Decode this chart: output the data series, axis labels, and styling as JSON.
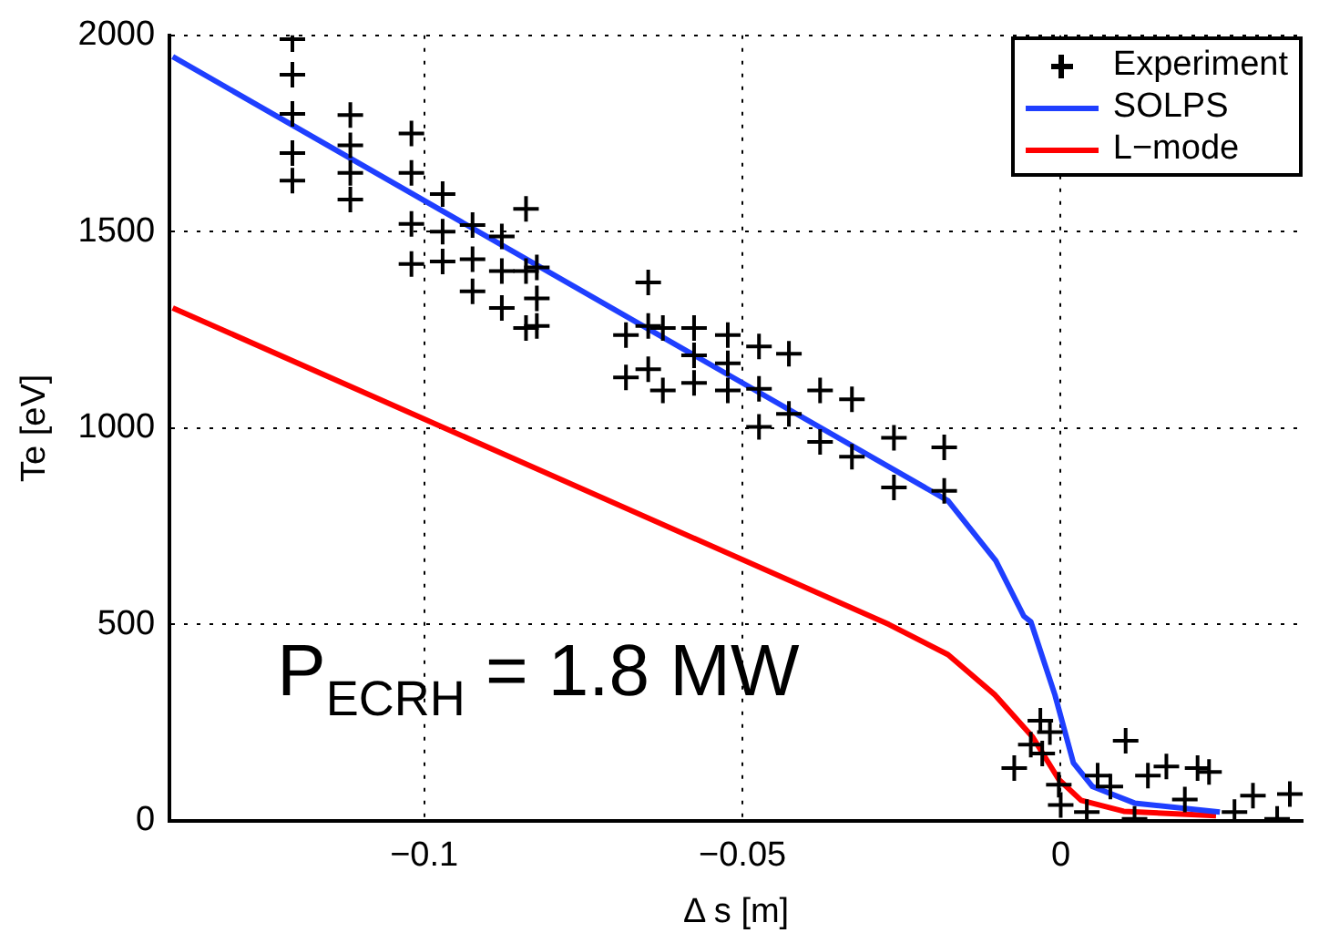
{
  "chart_data": {
    "type": "line",
    "xlabel": "Δ s [m]",
    "ylabel": "Te [eV]",
    "xlim": [
      -0.14,
      0.038
    ],
    "ylim": [
      0,
      2000
    ],
    "xticks": [
      {
        "value": -0.1,
        "label": "−0.1"
      },
      {
        "value": -0.05,
        "label": "−0.05"
      },
      0
    ],
    "yticks": [
      0,
      500,
      1000,
      1500,
      2000
    ],
    "grid": true,
    "legend": "top right",
    "annotations": [
      "P$_{ECRH}$ = 1.8 MW"
    ],
    "series": [
      {
        "name": "Experiment",
        "type": "scatter",
        "marker": "cross",
        "color": "#000000",
        "x": [
          -0.1207,
          -0.1207,
          -0.1207,
          -0.1207,
          -0.1207,
          -0.1116,
          -0.1116,
          -0.1116,
          -0.1116,
          -0.102,
          -0.102,
          -0.102,
          -0.102,
          -0.0971,
          -0.0971,
          -0.0971,
          -0.0924,
          -0.0924,
          -0.0924,
          -0.0878,
          -0.0878,
          -0.0878,
          -0.084,
          -0.084,
          -0.084,
          -0.0823,
          -0.0823,
          -0.0823,
          -0.0683,
          -0.0683,
          -0.0648,
          -0.0648,
          -0.0648,
          -0.0625,
          -0.0625,
          -0.0576,
          -0.0576,
          -0.0576,
          -0.0523,
          -0.0523,
          -0.0523,
          -0.0474,
          -0.0474,
          -0.0474,
          -0.0427,
          -0.0427,
          -0.0378,
          -0.0378,
          -0.0328,
          -0.0328,
          -0.0262,
          -0.0262,
          -0.0183,
          -0.0183,
          -0.0032,
          -0.0017,
          -0.0047,
          -0.0073,
          -0.0029,
          -0.0003,
          0,
          0.0041,
          0.0058,
          0.0102,
          0.0078,
          0.0137,
          0.0166,
          0.0215,
          0.0233,
          0.0195,
          0.0273,
          0.0302,
          0.036,
          0.034,
          0.0116
        ],
        "values": [
          1990,
          1900,
          1800,
          1700,
          1630,
          1797,
          1720,
          1650,
          1582,
          1750,
          1650,
          1520,
          1418,
          1596,
          1500,
          1424,
          1517,
          1430,
          1348,
          1488,
          1400,
          1306,
          1558,
          1400,
          1255,
          1409,
          1330,
          1260,
          1237,
          1129,
          1371,
          1260,
          1150,
          1255,
          1096,
          1255,
          1185,
          1115,
          1237,
          1165,
          1096,
          1208,
          1100,
          1003,
          1189,
          1036,
          1096,
          965,
          1073,
          927,
          975,
          849,
          951,
          840,
          255,
          226,
          194,
          134,
          171,
          92,
          40,
          22,
          115,
          204,
          87,
          115,
          138,
          134,
          124,
          54,
          22,
          64,
          68,
          5,
          5
        ]
      },
      {
        "name": "SOLPS",
        "color": "#1f3fff",
        "x": [
          -0.1395,
          -0.0177,
          -0.0102,
          -0.0058,
          -0.0047,
          -0.0009,
          0.002,
          0.005,
          0.0116,
          0.025
        ],
        "values": [
          1946,
          815,
          662,
          521,
          507,
          320,
          147,
          87,
          45,
          22
        ]
      },
      {
        "name": "L−mode",
        "color": "#ff0000",
        "x": [
          -0.1395,
          -0.027,
          -0.0177,
          -0.0103,
          -0.0044,
          -0.0003,
          0.0032,
          0.0099,
          0.0244
        ],
        "values": [
          1306,
          500,
          423,
          320,
          213,
          105,
          52,
          24,
          13
        ]
      }
    ]
  }
}
